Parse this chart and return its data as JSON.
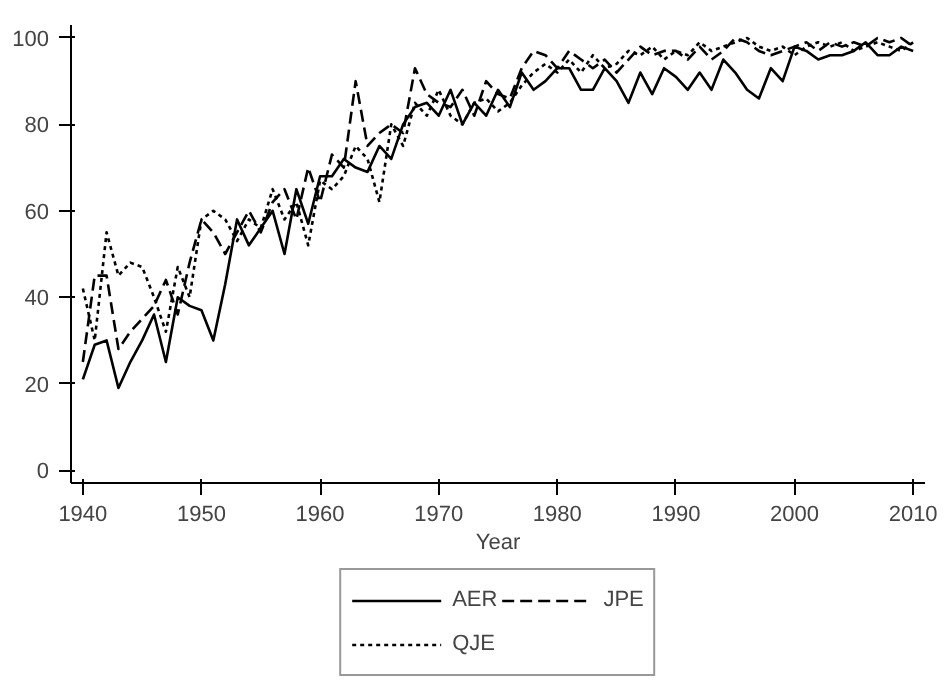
{
  "chart_data": {
    "type": "line",
    "xlabel": "Year",
    "xlim": [
      1939,
      2011
    ],
    "ylim": [
      -3,
      103
    ],
    "xticks": [
      1940,
      1950,
      1960,
      1970,
      1980,
      1990,
      2000,
      2010
    ],
    "yticks": [
      0,
      20,
      40,
      60,
      80,
      100
    ],
    "grid": false,
    "legend": "bottom",
    "marker": "none",
    "x": [
      1940,
      1941,
      1942,
      1943,
      1944,
      1945,
      1946,
      1947,
      1948,
      1949,
      1950,
      1951,
      1952,
      1953,
      1954,
      1955,
      1956,
      1957,
      1958,
      1959,
      1960,
      1961,
      1962,
      1963,
      1964,
      1965,
      1966,
      1967,
      1968,
      1969,
      1970,
      1971,
      1972,
      1973,
      1974,
      1975,
      1976,
      1977,
      1978,
      1979,
      1980,
      1981,
      1982,
      1983,
      1984,
      1985,
      1986,
      1987,
      1988,
      1989,
      1990,
      1991,
      1992,
      1993,
      1994,
      1995,
      1996,
      1997,
      1998,
      1999,
      2000,
      2001,
      2002,
      2003,
      2004,
      2005,
      2006,
      2007,
      2008,
      2009,
      2010
    ],
    "series": [
      {
        "name": "AER",
        "color": "#000000",
        "line_style": "solid",
        "values": [
          21,
          29,
          30,
          19,
          25,
          30,
          36,
          25,
          40,
          38,
          37,
          30,
          43,
          58,
          52,
          56,
          60,
          50,
          65,
          57,
          68,
          68,
          72,
          70,
          69,
          75,
          72,
          80,
          84,
          85,
          82,
          88,
          80,
          85,
          82,
          88,
          84,
          92,
          88,
          90,
          93,
          93,
          88,
          88,
          93,
          90,
          85,
          92,
          87,
          93,
          91,
          88,
          92,
          88,
          95,
          92,
          88,
          86,
          93,
          90,
          98,
          97,
          95,
          96,
          96,
          97,
          99,
          96,
          96,
          98,
          97
        ]
      },
      {
        "name": "JPE",
        "color": "#000000",
        "line_style": "dashed",
        "values": [
          25,
          45,
          45,
          28,
          32,
          35,
          38,
          44,
          36,
          48,
          58,
          55,
          50,
          55,
          60,
          55,
          62,
          65,
          58,
          70,
          62,
          73,
          70,
          90,
          75,
          78,
          80,
          78,
          93,
          87,
          85,
          84,
          88,
          82,
          90,
          87,
          86,
          93,
          97,
          96,
          93,
          97,
          95,
          93,
          95,
          92,
          95,
          98,
          96,
          97,
          97,
          95,
          98,
          95,
          97,
          100,
          99,
          97,
          96,
          97,
          98,
          99,
          97,
          99,
          98,
          99,
          98,
          100,
          99,
          100,
          98
        ]
      },
      {
        "name": "QJE",
        "color": "#000000",
        "line_style": "dotted",
        "values": [
          42,
          30,
          55,
          45,
          48,
          47,
          40,
          32,
          47,
          40,
          58,
          60,
          58,
          53,
          58,
          56,
          65,
          58,
          62,
          52,
          67,
          65,
          68,
          75,
          72,
          62,
          80,
          75,
          85,
          82,
          88,
          82,
          80,
          85,
          86,
          83,
          85,
          89,
          92,
          94,
          92,
          95,
          92,
          96,
          93,
          94,
          97,
          96,
          98,
          95,
          97,
          96,
          99,
          97,
          98,
          99,
          100,
          98,
          97,
          98,
          96,
          98,
          99,
          98,
          99,
          97,
          98,
          99,
          98,
          97,
          99
        ]
      }
    ]
  }
}
